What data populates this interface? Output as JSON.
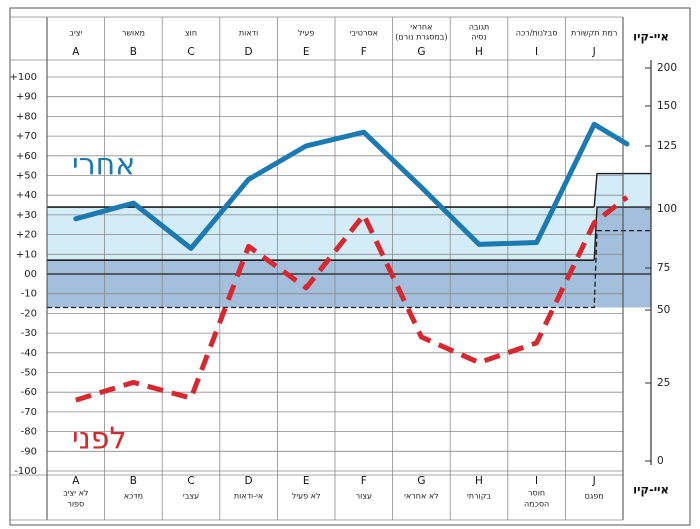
{
  "chart_data": {
    "type": "line",
    "categories": [
      "A",
      "B",
      "C",
      "D",
      "E",
      "F",
      "G",
      "H",
      "I",
      "J"
    ],
    "top_labels": [
      [
        "יציב"
      ],
      [
        "מאושר"
      ],
      [
        "חוצ"
      ],
      [
        "ודאות"
      ],
      [
        "פעיל"
      ],
      [
        "אסרטיבי"
      ],
      [
        "אחראי",
        "(במסגרת נורם)"
      ],
      [
        "תגובה",
        "נסיה"
      ],
      [
        "סבלנות/רכה"
      ],
      [
        "רמת תקשורת"
      ]
    ],
    "bottom_labels": [
      [
        "לא יציב",
        "ספור"
      ],
      [
        "מדכא"
      ],
      [
        "עצבי"
      ],
      [
        "אי-ודאות"
      ],
      [
        "לא פעיל"
      ],
      [
        "עצור"
      ],
      [
        "לא אחראי"
      ],
      [
        "בקורתי"
      ],
      [
        "חוסר",
        "הסכמה"
      ],
      [
        "מפגם"
      ]
    ],
    "iq_label": "איי-קיו",
    "y_ticks": [
      "+100",
      "+90",
      "+80",
      "+70",
      "+60",
      "+50",
      "+40",
      "+30",
      "+20",
      "+10",
      "00",
      "-10",
      "-20",
      "-30",
      "-40",
      "-50",
      "-60",
      "-70",
      "-80",
      "-90",
      "-100"
    ],
    "ylim": [
      -100,
      100
    ],
    "iq_ticks": [
      "200",
      "150",
      "125",
      "100",
      "75",
      "50",
      "25",
      "0"
    ],
    "series": [
      {
        "name": "אחרי",
        "color": "#1a7ab1",
        "values": [
          28,
          36,
          13,
          48,
          65,
          72,
          44,
          15,
          16,
          76
        ],
        "iq_end": 66
      },
      {
        "name": "לפני",
        "color": "#d7282f",
        "values": [
          -64,
          -55,
          -63,
          14,
          -7,
          30,
          -32,
          -45,
          -35,
          26
        ],
        "iq_end": 39
      }
    ],
    "bands": [
      {
        "from": 7,
        "to": 34,
        "color": "#d3ecf8",
        "iq_from": 34,
        "iq_to": 51
      },
      {
        "from": -17,
        "to": 7,
        "color": "#a3bfdc",
        "iq_from": -17,
        "iq_to": 34
      }
    ],
    "iq_dashed_level": 22
  }
}
